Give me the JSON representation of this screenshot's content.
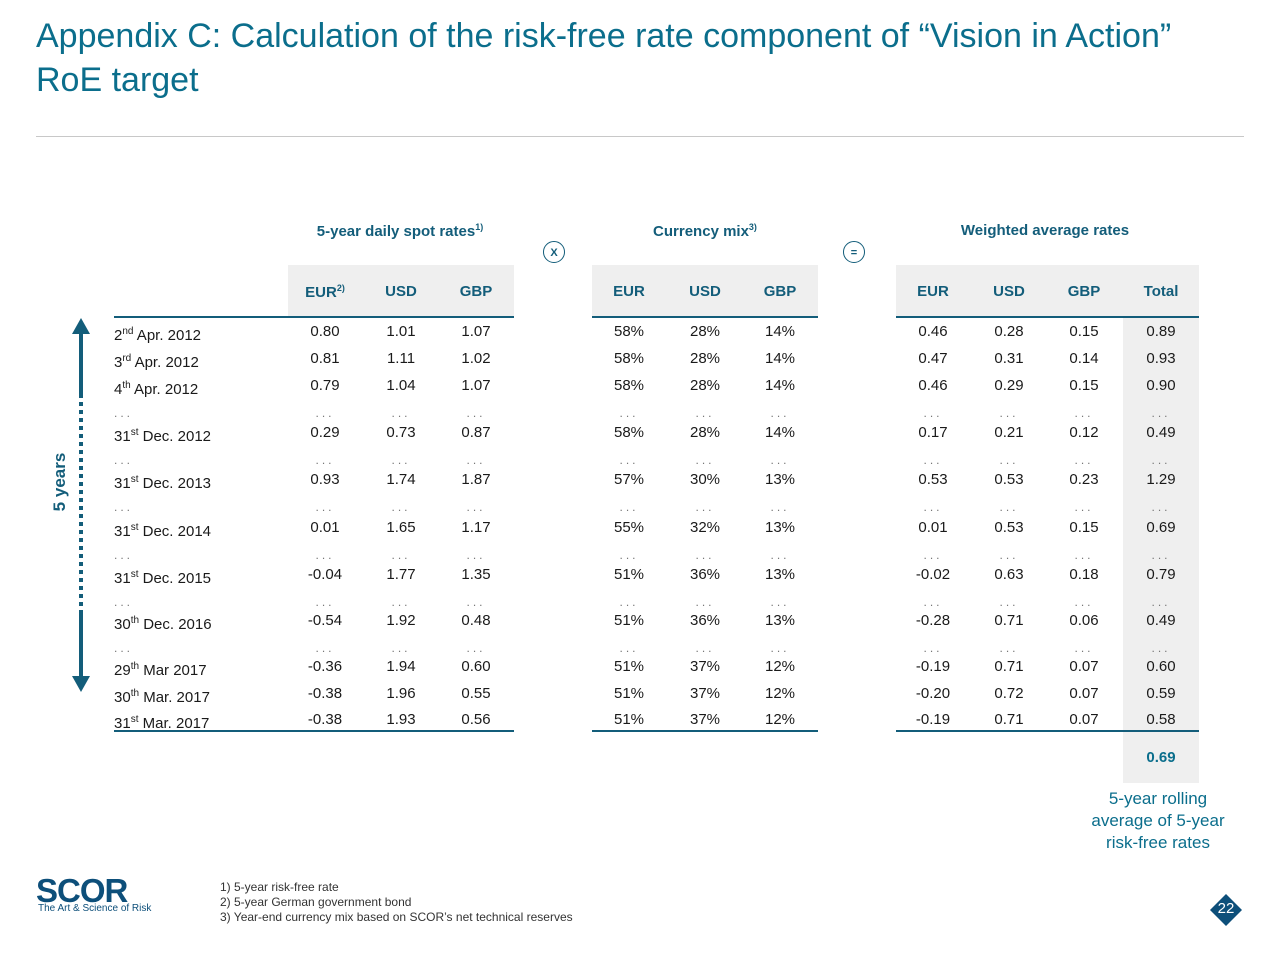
{
  "title": "Appendix C: Calculation of the risk-free rate component of “Vision in Action” RoE target",
  "groups": {
    "spot": {
      "label": "5-year daily spot rates",
      "sup": "1)"
    },
    "mix": {
      "label": "Currency mix",
      "sup": "3)"
    },
    "weighted": {
      "label": "Weighted average rates"
    }
  },
  "operators": {
    "multiply": "X",
    "equals": "="
  },
  "columns": {
    "spot": [
      "EUR",
      "USD",
      "GBP"
    ],
    "spot_eur_sup": "2)",
    "mix": [
      "EUR",
      "USD",
      "GBP"
    ],
    "weighted": [
      "EUR",
      "USD",
      "GBP",
      "Total"
    ]
  },
  "rows": [
    {
      "day": "2",
      "sup": "nd",
      "date": " Apr. 2012",
      "spot": [
        "0.80",
        "1.01",
        "1.07"
      ],
      "mix": [
        "58%",
        "28%",
        "14%"
      ],
      "weighted": [
        "0.46",
        "0.28",
        "0.15",
        "0.89"
      ]
    },
    {
      "day": "3",
      "sup": "rd",
      "date": " Apr. 2012",
      "spot": [
        "0.81",
        "1.11",
        "1.02"
      ],
      "mix": [
        "58%",
        "28%",
        "14%"
      ],
      "weighted": [
        "0.47",
        "0.31",
        "0.14",
        "0.93"
      ]
    },
    {
      "day": "4",
      "sup": "th",
      "date": " Apr. 2012",
      "spot": [
        "0.79",
        "1.04",
        "1.07"
      ],
      "mix": [
        "58%",
        "28%",
        "14%"
      ],
      "weighted": [
        "0.46",
        "0.29",
        "0.15",
        "0.90"
      ]
    },
    {
      "day": "31",
      "sup": "st",
      "date": " Dec. 2012",
      "spot": [
        "0.29",
        "0.73",
        "0.87"
      ],
      "mix": [
        "58%",
        "28%",
        "14%"
      ],
      "weighted": [
        "0.17",
        "0.21",
        "0.12",
        "0.49"
      ]
    },
    {
      "day": "31",
      "sup": "st",
      "date": " Dec. 2013",
      "spot": [
        "0.93",
        "1.74",
        "1.87"
      ],
      "mix": [
        "57%",
        "30%",
        "13%"
      ],
      "weighted": [
        "0.53",
        "0.53",
        "0.23",
        "1.29"
      ]
    },
    {
      "day": "31",
      "sup": "st",
      "date": " Dec. 2014",
      "spot": [
        "0.01",
        "1.65",
        "1.17"
      ],
      "mix": [
        "55%",
        "32%",
        "13%"
      ],
      "weighted": [
        "0.01",
        "0.53",
        "0.15",
        "0.69"
      ]
    },
    {
      "day": "31",
      "sup": "st",
      "date": " Dec. 2015",
      "spot": [
        "-0.04",
        "1.77",
        "1.35"
      ],
      "mix": [
        "51%",
        "36%",
        "13%"
      ],
      "weighted": [
        "-0.02",
        "0.63",
        "0.18",
        "0.79"
      ]
    },
    {
      "day": "30",
      "sup": "th",
      "date": " Dec. 2016",
      "spot": [
        "-0.54",
        "1.92",
        "0.48"
      ],
      "mix": [
        "51%",
        "36%",
        "13%"
      ],
      "weighted": [
        "-0.28",
        "0.71",
        "0.06",
        "0.49"
      ]
    },
    {
      "day": "29",
      "sup": "th",
      "date": " Mar 2017",
      "spot": [
        "-0.36",
        "1.94",
        "0.60"
      ],
      "mix": [
        "51%",
        "37%",
        "12%"
      ],
      "weighted": [
        "-0.19",
        "0.71",
        "0.07",
        "0.60"
      ]
    },
    {
      "day": "30",
      "sup": "th",
      "date": " Mar. 2017",
      "spot": [
        "-0.38",
        "1.96",
        "0.55"
      ],
      "mix": [
        "51%",
        "37%",
        "12%"
      ],
      "weighted": [
        "-0.20",
        "0.72",
        "0.07",
        "0.59"
      ]
    },
    {
      "day": "31",
      "sup": "st",
      "date": " Mar. 2017",
      "spot": [
        "-0.38",
        "1.93",
        "0.56"
      ],
      "mix": [
        "51%",
        "37%",
        "12%"
      ],
      "weighted": [
        "-0.19",
        "0.71",
        "0.07",
        "0.58"
      ]
    }
  ],
  "ellipsis": "...",
  "total": "0.69",
  "rolling_note": [
    "5-year rolling",
    "average of 5-year",
    "risk-free rates"
  ],
  "side_label": "5 years",
  "footnotes": [
    "1)  5-year risk-free rate",
    "2)  5-year German government bond",
    "3)  Year-end currency mix based on SCOR’s net technical reserves"
  ],
  "logo": {
    "word": "SCOR",
    "tagline": "The Art & Science of Risk"
  },
  "page_number": "22",
  "colors": {
    "title": "#0b6e8c",
    "accent": "#135d7a",
    "badge": "#0d4f7a"
  }
}
